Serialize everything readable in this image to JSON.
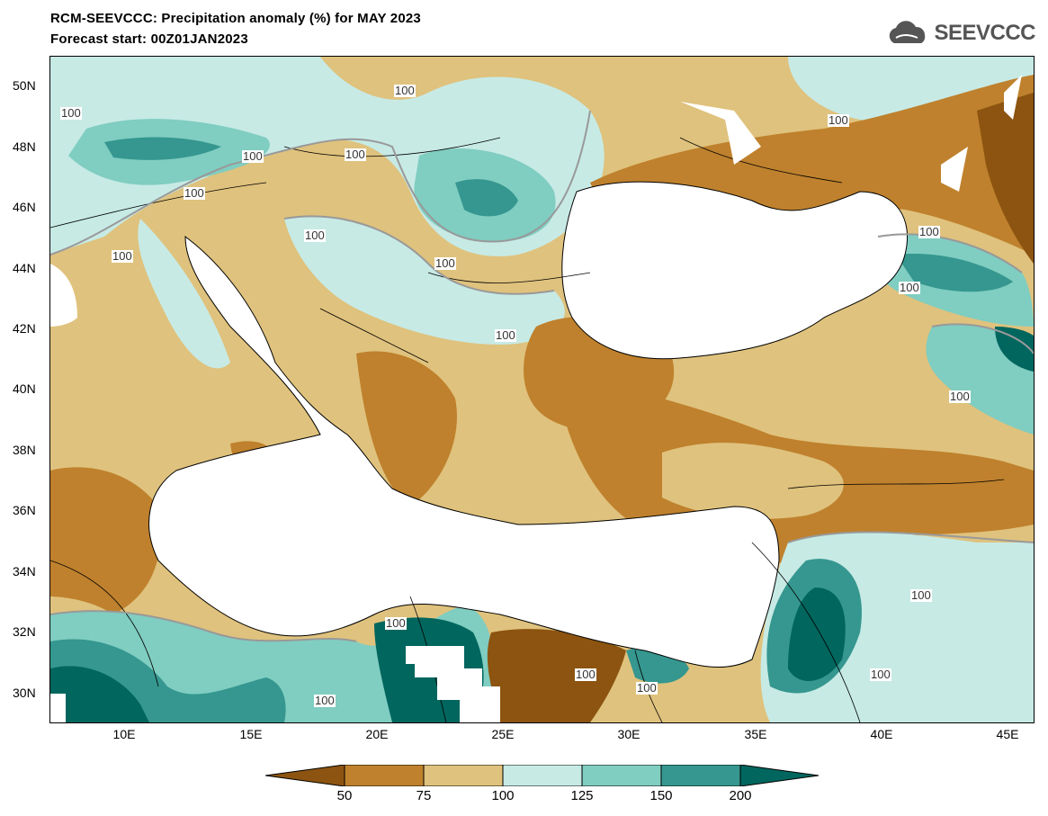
{
  "header": {
    "title": "RCM-SEEVCCC: Precipitation anomaly (%) for MAY 2023",
    "subtitle": "Forecast start: 00Z01JAN2023"
  },
  "logo": {
    "text": "SEEVCCC",
    "icon": "cloud-icon"
  },
  "map": {
    "latitudes": [
      "50N",
      "48N",
      "46N",
      "44N",
      "42N",
      "40N",
      "38N",
      "36N",
      "34N",
      "32N",
      "30N"
    ],
    "longitudes": [
      "10E",
      "15E",
      "20E",
      "25E",
      "30E",
      "35E",
      "40E",
      "45E"
    ],
    "contour_label": "100"
  },
  "colorbar": {
    "labels": [
      "50",
      "75",
      "100",
      "125",
      "150",
      "200"
    ],
    "colors": [
      "#8c5410",
      "#bf812d",
      "#dfc27d",
      "#c7eae5",
      "#80cdc1",
      "#35978f",
      "#01665e"
    ]
  }
}
